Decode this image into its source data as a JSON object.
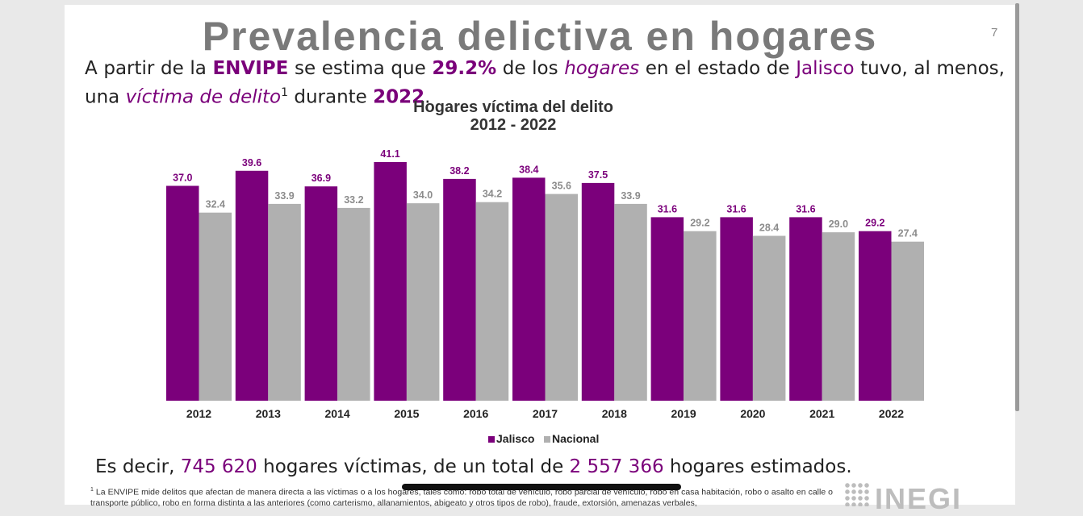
{
  "slide": {
    "title": "Prevalencia delictiva en hogares",
    "number": "7"
  },
  "intro": {
    "p1": "A partir de la ",
    "p2": "ENVIPE",
    "p3": " se estima que ",
    "p4": "29.2%",
    "p5": " de los ",
    "p6": "hogares",
    "p7": " en el estado de ",
    "p8": "Jalisco",
    "p9": " tuvo, al menos, una ",
    "p10": "víctima de delito",
    "p11": "1",
    "p12": " durante ",
    "p13": "2022",
    "p14": "."
  },
  "chart_data": {
    "type": "bar",
    "title": "Hogares víctima del delito",
    "subtitle": "2012 - 2022",
    "categories": [
      "2012",
      "2013",
      "2014",
      "2015",
      "2016",
      "2017",
      "2018",
      "2019",
      "2020",
      "2021",
      "2022"
    ],
    "series": [
      {
        "name": "Jalisco",
        "color": "#7b007b",
        "values": [
          37.0,
          39.6,
          36.9,
          41.1,
          38.2,
          38.4,
          37.5,
          31.6,
          31.6,
          31.6,
          29.2
        ]
      },
      {
        "name": "Nacional",
        "color": "#b0b0b0",
        "values": [
          32.4,
          33.9,
          33.2,
          34.0,
          34.2,
          35.6,
          33.9,
          29.2,
          28.4,
          29.0,
          27.4
        ]
      }
    ],
    "ylim": [
      0,
      41.1
    ],
    "grid": false,
    "legend": "bottom-center"
  },
  "summary": {
    "s1": "Es decir, ",
    "s2": "745 620",
    "s3": " hogares víctimas, de un total de ",
    "s4": "2 557 366",
    "s5": " hogares estimados."
  },
  "footnote": {
    "mark": "1",
    "text": "La ENVIPE mide delitos que afectan de manera directa a las víctimas o a los hogares, tales como: robo total de vehículo, robo parcial de vehículo, robo en casa habitación, robo o asalto en calle o transporte público, robo en forma distinta a las anteriores (como carterismo, allanamientos, abigeato y otros tipos de robo), fraude, extorsión, amenazas verbales,"
  },
  "logo": {
    "text": "INEGI"
  }
}
